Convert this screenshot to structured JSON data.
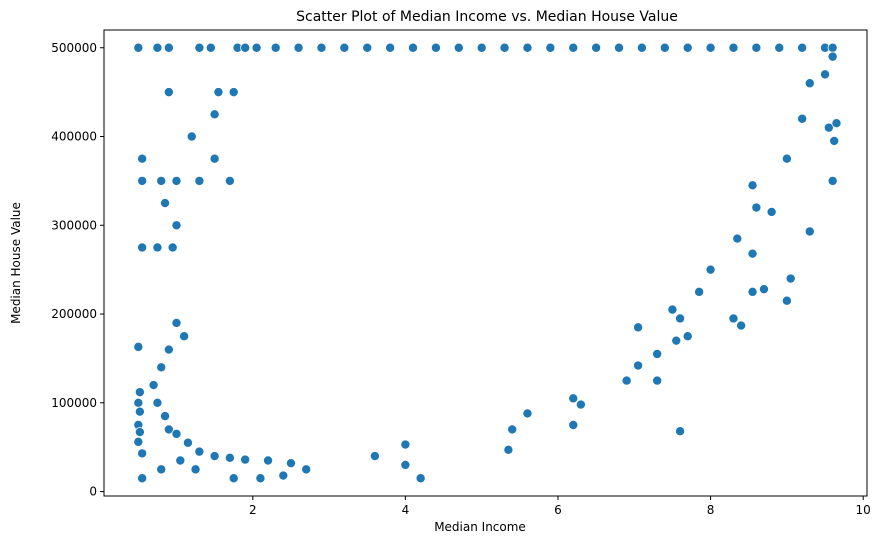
{
  "chart_data": {
    "type": "scatter",
    "title": "Scatter Plot of Median Income vs. Median House Value",
    "xlabel": "Median Income",
    "ylabel": "Median House Value",
    "xlim": [
      0.05,
      10.05
    ],
    "ylim": [
      -5000,
      520000
    ],
    "xticks": [
      2,
      4,
      6,
      8,
      10
    ],
    "yticks": [
      0,
      100000,
      200000,
      300000,
      400000,
      500000
    ],
    "xtick_labels": [
      "2",
      "4",
      "6",
      "8",
      "10"
    ],
    "ytick_labels": [
      "0",
      "100000",
      "200000",
      "300000",
      "400000",
      "500000"
    ],
    "grid": false,
    "marker_color": "#1f77b4",
    "marker_edge_color": "#ffffff",
    "series": [
      {
        "points": [
          [
            0.5,
            500000
          ],
          [
            0.75,
            500000
          ],
          [
            0.9,
            500000
          ],
          [
            1.3,
            500000
          ],
          [
            1.45,
            500000
          ],
          [
            1.8,
            500000
          ],
          [
            1.9,
            500000
          ],
          [
            2.05,
            500000
          ],
          [
            2.3,
            500000
          ],
          [
            2.6,
            500000
          ],
          [
            2.9,
            500000
          ],
          [
            3.2,
            500000
          ],
          [
            3.5,
            500000
          ],
          [
            3.8,
            500000
          ],
          [
            4.1,
            500000
          ],
          [
            4.4,
            500000
          ],
          [
            4.7,
            500000
          ],
          [
            5.0,
            500000
          ],
          [
            5.3,
            500000
          ],
          [
            5.6,
            500000
          ],
          [
            5.9,
            500000
          ],
          [
            6.2,
            500000
          ],
          [
            6.5,
            500000
          ],
          [
            6.8,
            500000
          ],
          [
            7.1,
            500000
          ],
          [
            7.4,
            500000
          ],
          [
            7.7,
            500000
          ],
          [
            8.0,
            500000
          ],
          [
            8.3,
            500000
          ],
          [
            8.6,
            500000
          ],
          [
            8.9,
            500000
          ],
          [
            9.2,
            500000
          ],
          [
            9.5,
            500000
          ],
          [
            9.6,
            500000
          ],
          [
            0.55,
            375000
          ],
          [
            0.55,
            350000
          ],
          [
            0.55,
            275000
          ],
          [
            0.5,
            163000
          ],
          [
            0.52,
            112000
          ],
          [
            0.5,
            100000
          ],
          [
            0.52,
            90000
          ],
          [
            0.5,
            75000
          ],
          [
            0.52,
            67000
          ],
          [
            0.5,
            56000
          ],
          [
            0.55,
            43000
          ],
          [
            0.55,
            15000
          ],
          [
            0.9,
            450000
          ],
          [
            0.8,
            350000
          ],
          [
            0.85,
            325000
          ],
          [
            1.0,
            350000
          ],
          [
            1.0,
            300000
          ],
          [
            0.95,
            275000
          ],
          [
            0.75,
            275000
          ],
          [
            1.2,
            400000
          ],
          [
            1.3,
            350000
          ],
          [
            1.55,
            450000
          ],
          [
            1.5,
            425000
          ],
          [
            1.5,
            375000
          ],
          [
            1.75,
            450000
          ],
          [
            1.7,
            350000
          ],
          [
            1.75,
            15000
          ],
          [
            2.1,
            15000
          ],
          [
            2.4,
            18000
          ],
          [
            2.7,
            25000
          ],
          [
            1.25,
            25000
          ],
          [
            0.8,
            25000
          ],
          [
            1.05,
            35000
          ],
          [
            4.2,
            15000
          ],
          [
            4.0,
            30000
          ],
          [
            3.6,
            40000
          ],
          [
            4.0,
            53000
          ],
          [
            5.35,
            47000
          ],
          [
            5.4,
            70000
          ],
          [
            6.2,
            75000
          ],
          [
            5.6,
            88000
          ],
          [
            6.3,
            98000
          ],
          [
            6.2,
            105000
          ],
          [
            6.9,
            125000
          ],
          [
            7.3,
            125000
          ],
          [
            7.05,
            142000
          ],
          [
            7.3,
            155000
          ],
          [
            7.55,
            170000
          ],
          [
            7.7,
            175000
          ],
          [
            7.6,
            195000
          ],
          [
            7.5,
            205000
          ],
          [
            8.4,
            187000
          ],
          [
            8.3,
            195000
          ],
          [
            7.6,
            68000
          ],
          [
            7.05,
            185000
          ],
          [
            7.85,
            225000
          ],
          [
            8.0,
            250000
          ],
          [
            8.35,
            285000
          ],
          [
            8.55,
            225000
          ],
          [
            8.7,
            228000
          ],
          [
            8.55,
            268000
          ],
          [
            9.0,
            215000
          ],
          [
            9.05,
            240000
          ],
          [
            9.3,
            293000
          ],
          [
            9.6,
            350000
          ],
          [
            9.55,
            410000
          ],
          [
            9.62,
            395000
          ],
          [
            9.65,
            415000
          ],
          [
            8.6,
            320000
          ],
          [
            8.8,
            315000
          ],
          [
            8.55,
            345000
          ],
          [
            9.0,
            375000
          ],
          [
            9.2,
            420000
          ],
          [
            9.3,
            460000
          ],
          [
            9.5,
            470000
          ],
          [
            9.6,
            490000
          ],
          [
            1.1,
            175000
          ],
          [
            1.0,
            190000
          ],
          [
            0.9,
            160000
          ],
          [
            0.8,
            140000
          ],
          [
            0.7,
            120000
          ],
          [
            0.75,
            100000
          ],
          [
            0.85,
            85000
          ],
          [
            0.9,
            70000
          ],
          [
            1.0,
            65000
          ],
          [
            1.15,
            55000
          ],
          [
            1.3,
            45000
          ],
          [
            1.5,
            40000
          ],
          [
            1.7,
            38000
          ],
          [
            1.9,
            36000
          ],
          [
            2.2,
            35000
          ],
          [
            2.5,
            32000
          ]
        ]
      }
    ]
  }
}
